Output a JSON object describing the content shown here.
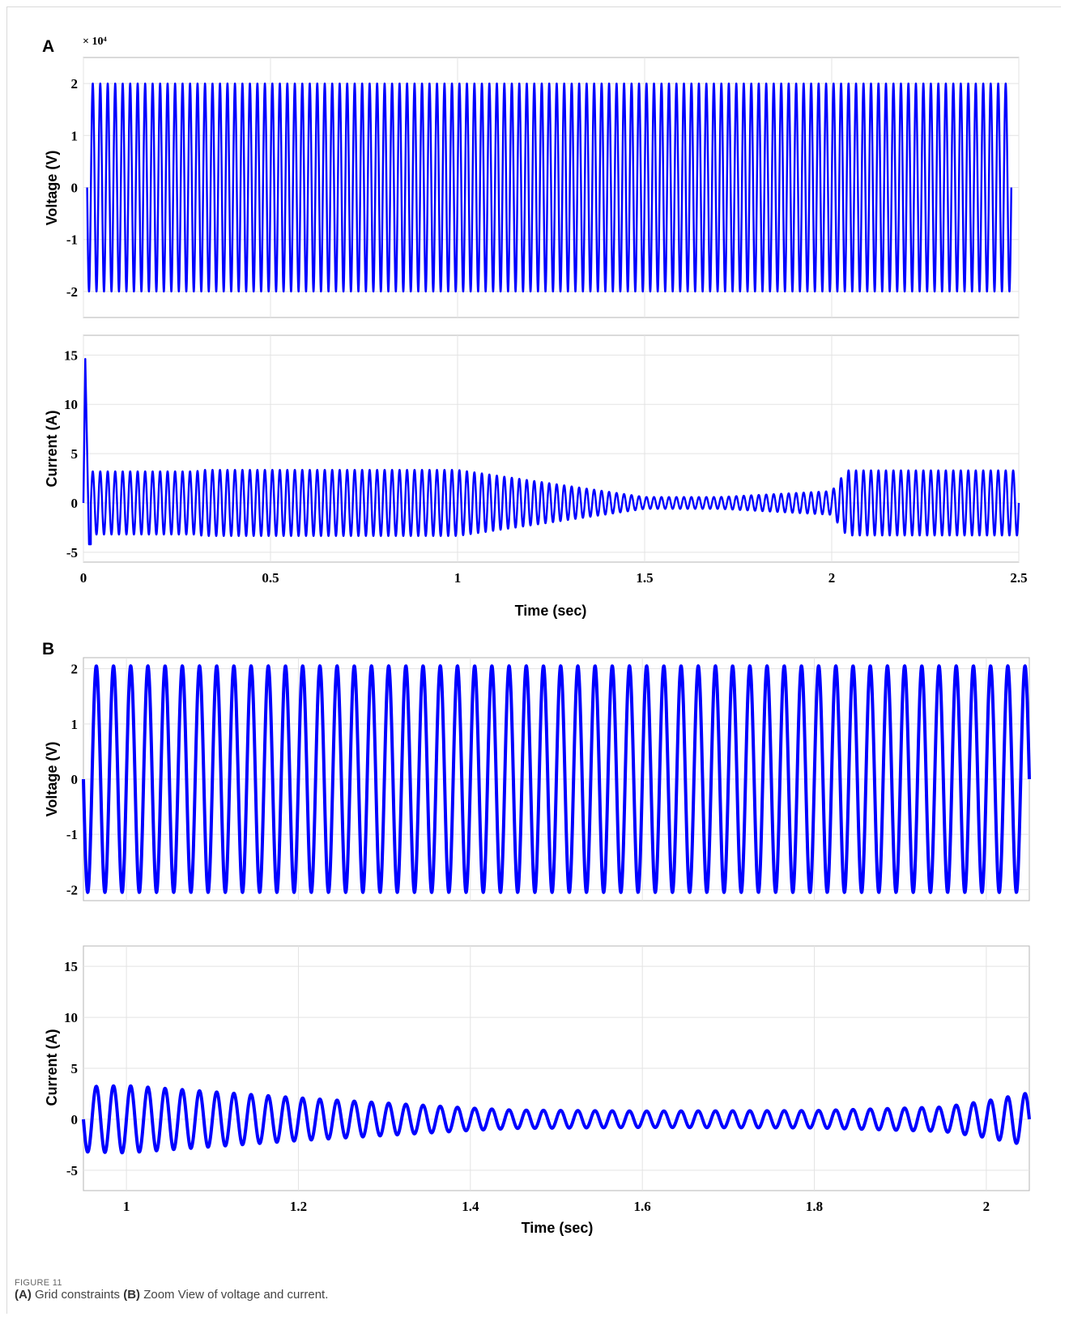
{
  "figure": {
    "label": "FIGURE 11",
    "caption": [
      {
        "bold": "(A)",
        "text": " Grid constraints "
      },
      {
        "bold": "(B)",
        "text": " Zoom View of voltage and current."
      }
    ]
  },
  "colors": {
    "trace": "#0000ff",
    "grid": "#e3e3e3",
    "axis": "#b5b5b5"
  },
  "chart_data": [
    {
      "type": "line",
      "panel": "A",
      "ylabel": "Voltage (V)",
      "y_multiplier": "× 10⁴",
      "x_range": [
        0,
        2.5
      ],
      "ylim": [
        -2.5,
        2.5
      ],
      "yticks": [
        "2",
        "1",
        "0",
        "-1",
        "-2"
      ],
      "grid": true,
      "series": [
        {
          "frequency_hz": 50,
          "amplitude": 2.0,
          "x_range": [
            0.01,
            2.48
          ]
        }
      ]
    },
    {
      "type": "line",
      "panel": "A",
      "ylabel": "Current (A)",
      "xlabel": "Time (sec)",
      "x_range": [
        0,
        2.5
      ],
      "xticks": [
        "0",
        "0.5",
        "1",
        "1.5",
        "2",
        "2.5"
      ],
      "ylim": [
        -6,
        17
      ],
      "yticks": [
        "15",
        "10",
        "5",
        "0",
        "-5"
      ],
      "grid": true,
      "series": [
        {
          "frequency_hz": 50,
          "x_range": [
            0.0,
            2.5
          ],
          "envelope": [
            [
              0.02,
              3.2
            ],
            [
              0.3,
              3.2
            ],
            [
              0.32,
              3.35
            ],
            [
              1.0,
              3.35
            ],
            [
              1.5,
              0.6
            ],
            [
              1.7,
              0.6
            ],
            [
              2.0,
              1.2
            ],
            [
              2.04,
              3.3
            ],
            [
              2.5,
              3.3
            ]
          ],
          "startup_spike": {
            "time": 0.005,
            "peak": 14.6,
            "min": -4.2
          }
        }
      ]
    },
    {
      "type": "line",
      "panel": "B",
      "ylabel": "Voltage (V)",
      "x_range": [
        0.95,
        2.05
      ],
      "ylim": [
        -2.2,
        2.2
      ],
      "yticks": [
        "2",
        "1",
        "0",
        "-1",
        "-2"
      ],
      "grid": true,
      "series": [
        {
          "frequency_hz": 50,
          "amplitude": 2.05
        }
      ]
    },
    {
      "type": "line",
      "panel": "B",
      "ylabel": "Current (A)",
      "xlabel": "Time (sec)",
      "x_range": [
        0.95,
        2.05
      ],
      "xticks": [
        "1",
        "1.2",
        "1.4",
        "1.6",
        "1.8",
        "2"
      ],
      "ylim": [
        -7,
        17
      ],
      "yticks": [
        "15",
        "10",
        "5",
        "0",
        "-5"
      ],
      "grid": true,
      "series": [
        {
          "frequency_hz": 50,
          "envelope": [
            [
              0.95,
              3.2
            ],
            [
              1.0,
              3.3
            ],
            [
              1.1,
              2.7
            ],
            [
              1.2,
              2.1
            ],
            [
              1.3,
              1.6
            ],
            [
              1.4,
              1.1
            ],
            [
              1.45,
              0.9
            ],
            [
              1.6,
              0.8
            ],
            [
              1.8,
              0.85
            ],
            [
              1.95,
              1.2
            ],
            [
              2.0,
              1.8
            ],
            [
              2.05,
              2.6
            ]
          ]
        }
      ]
    }
  ]
}
